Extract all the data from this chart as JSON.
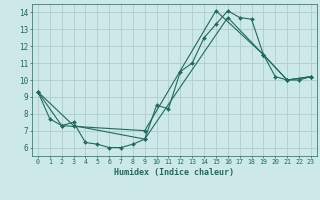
{
  "title": "",
  "xlabel": "Humidex (Indice chaleur)",
  "ylabel": "",
  "bg_color": "#cde8e8",
  "grid_color": "#b0cccc",
  "line_color": "#1e6b5e",
  "xlim": [
    -0.5,
    23.5
  ],
  "ylim": [
    5.5,
    14.5
  ],
  "xticks": [
    0,
    1,
    2,
    3,
    4,
    5,
    6,
    7,
    8,
    9,
    10,
    11,
    12,
    13,
    14,
    15,
    16,
    17,
    18,
    19,
    20,
    21,
    22,
    23
  ],
  "yticks": [
    6,
    7,
    8,
    9,
    10,
    11,
    12,
    13,
    14
  ],
  "series": [
    {
      "x": [
        0,
        1,
        2,
        3,
        4,
        5,
        6,
        7,
        8,
        9,
        10,
        11,
        12,
        13,
        14,
        15,
        16,
        17,
        18,
        19,
        20,
        21,
        22,
        23
      ],
      "y": [
        9.3,
        7.7,
        7.3,
        7.5,
        6.3,
        6.2,
        6.0,
        6.0,
        6.2,
        6.5,
        8.5,
        8.3,
        10.5,
        11.0,
        12.5,
        13.3,
        14.1,
        13.7,
        13.6,
        11.5,
        10.2,
        10.0,
        10.0,
        10.2
      ]
    },
    {
      "x": [
        0,
        3,
        9,
        16,
        19,
        21,
        23
      ],
      "y": [
        9.3,
        7.3,
        6.5,
        13.7,
        11.5,
        10.0,
        10.2
      ]
    },
    {
      "x": [
        0,
        2,
        9,
        15,
        19,
        21,
        23
      ],
      "y": [
        9.3,
        7.3,
        7.0,
        14.1,
        11.5,
        10.0,
        10.2
      ]
    }
  ]
}
